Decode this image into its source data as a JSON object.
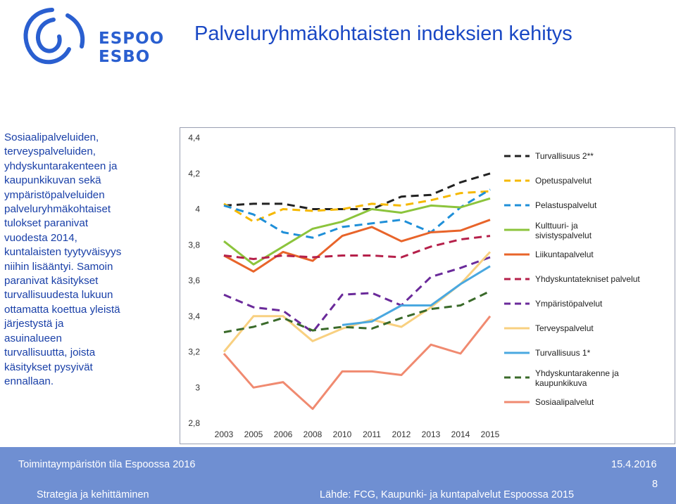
{
  "header": {
    "logo_line1": "ESPOO",
    "logo_line2": "ESBO",
    "title": "Palveluryhmäkohtaisten indeksien kehitys"
  },
  "body_text": [
    "Sosiaalipalveluiden,",
    "terveyspalveluiden,",
    "yhdyskuntarakenteen ja",
    "kaupunkikuvan sekä",
    "ympäristöpalveluiden",
    "palveluryhmäkohtaiset",
    "tulokset paranivat",
    "vuodesta 2014,",
    "kuntalaisten tyytyväisyys",
    "niihin lisääntyi. Samoin",
    "paranivat käsitykset",
    "turvallisuudesta lukuun",
    "ottamatta koettua yleistä",
    "järjestystä ja",
    "asuinalueen",
    "turvallisuutta, joista",
    "käsitykset pysyivät",
    "ennallaan."
  ],
  "footer": {
    "left_top": "Toimintaympäristön tila Espoossa 2016",
    "date": "15.4.2016",
    "left_bottom": "Strategia ja kehittäminen",
    "source": "Lähde: FCG, Kaupunki- ja kuntapalvelut Espoossa 2015",
    "page_number": "8"
  },
  "chart_data": {
    "type": "line",
    "x": [
      "2003",
      "2005",
      "2006",
      "2008",
      "2010",
      "2011",
      "2012",
      "2013",
      "2014",
      "2015"
    ],
    "ylim": [
      2.8,
      4.4
    ],
    "yticks": [
      "2,8",
      "3",
      "3,2",
      "3,4",
      "3,6",
      "3,8",
      "4",
      "4,2",
      "4,4"
    ],
    "grid": false,
    "legend_position": "right",
    "series": [
      {
        "name": "Turvallisuus 2**",
        "color": "#222222",
        "dashed": true,
        "values": [
          4.02,
          4.03,
          4.03,
          4.0,
          4.0,
          4.0,
          4.07,
          4.08,
          4.15,
          4.2
        ]
      },
      {
        "name": "Opetuspalvelut",
        "color": "#f5b800",
        "dashed": true,
        "values": [
          4.03,
          3.93,
          4.0,
          3.99,
          4.0,
          4.03,
          4.02,
          4.05,
          4.09,
          4.1
        ]
      },
      {
        "name": "Pelastuspalvelut",
        "color": "#1f8fd8",
        "dashed": true,
        "values": [
          4.02,
          3.97,
          3.87,
          3.84,
          3.9,
          3.92,
          3.94,
          3.87,
          4.01,
          4.11
        ]
      },
      {
        "name": "Kulttuuri- ja sivistyspalvelut",
        "color": "#8cc43c",
        "dashed": false,
        "values": [
          3.82,
          3.69,
          3.79,
          3.89,
          3.93,
          4.0,
          3.98,
          4.02,
          4.01,
          4.06
        ]
      },
      {
        "name": "Liikuntapalvelut",
        "color": "#e8642a",
        "dashed": false,
        "values": [
          3.74,
          3.65,
          3.76,
          3.71,
          3.85,
          3.9,
          3.82,
          3.87,
          3.88,
          3.94
        ]
      },
      {
        "name": "Yhdyskuntatekniset palvelut",
        "color": "#b5204a",
        "dashed": true,
        "values": [
          3.74,
          3.72,
          3.74,
          3.73,
          3.74,
          3.74,
          3.73,
          3.79,
          3.83,
          3.85
        ]
      },
      {
        "name": "Ympäristöpalvelut",
        "color": "#6a2a9a",
        "dashed": true,
        "values": [
          3.52,
          3.45,
          3.43,
          3.31,
          3.52,
          3.53,
          3.46,
          3.62,
          3.67,
          3.73
        ]
      },
      {
        "name": "Terveyspalvelut",
        "color": "#f8d080",
        "dashed": false,
        "values": [
          3.2,
          3.4,
          3.4,
          3.26,
          3.33,
          3.38,
          3.34,
          3.45,
          3.58,
          3.76
        ]
      },
      {
        "name": "Turvallisuus 1*",
        "color": "#4aa8e0",
        "dashed": false,
        "values": [
          null,
          null,
          null,
          null,
          3.35,
          3.37,
          3.46,
          3.46,
          3.58,
          3.68
        ]
      },
      {
        "name": "Yhdyskuntarakenne ja kaupunkikuva",
        "color": "#3a6a2a",
        "dashed": true,
        "values": [
          3.31,
          3.34,
          3.39,
          3.32,
          3.34,
          3.33,
          3.39,
          3.44,
          3.46,
          3.54
        ]
      },
      {
        "name": "Sosiaalipalvelut",
        "color": "#f08a70",
        "dashed": false,
        "values": [
          3.19,
          3.0,
          3.03,
          2.88,
          3.09,
          3.09,
          3.07,
          3.24,
          3.19,
          3.4
        ]
      }
    ]
  }
}
